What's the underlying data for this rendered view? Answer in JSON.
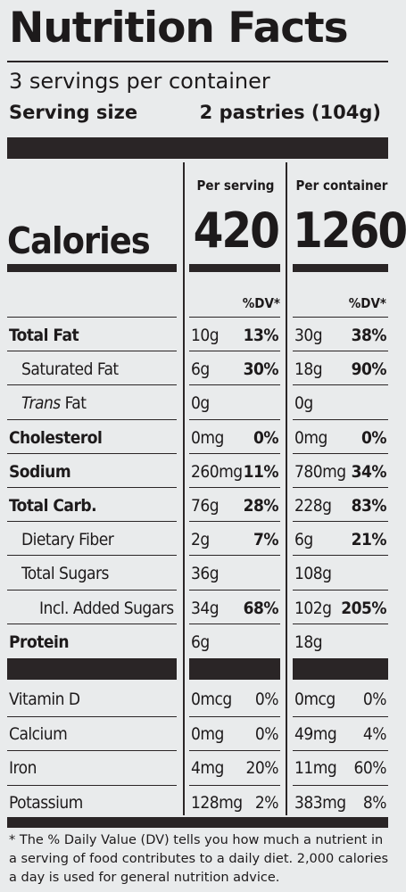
{
  "label": {
    "title": "Nutrition Facts",
    "servings_per_container": "3 servings per container",
    "serving_size_label": "Serving size",
    "serving_size_value": "2 pastries (104g)",
    "col_serving": "Per serving",
    "col_container": "Per container",
    "calories_label": "Calories",
    "calories_serving": "420",
    "calories_container": "1260",
    "dv_header": "%DV*",
    "nutrients": [
      {
        "name": "Total Fat",
        "bold": true,
        "indent": 0,
        "s_amt": "10g",
        "s_dv": "13%",
        "c_amt": "30g",
        "c_dv": "38%"
      },
      {
        "name": "Saturated Fat",
        "bold": false,
        "indent": 1,
        "s_amt": "6g",
        "s_dv": "30%",
        "c_amt": "18g",
        "c_dv": "90%"
      },
      {
        "name_italic": "Trans",
        "name": " Fat",
        "bold": false,
        "indent": 1,
        "s_amt": "0g",
        "s_dv": "",
        "c_amt": "0g",
        "c_dv": ""
      },
      {
        "name": "Cholesterol",
        "bold": true,
        "indent": 0,
        "s_amt": "0mg",
        "s_dv": "0%",
        "c_amt": "0mg",
        "c_dv": "0%"
      },
      {
        "name": "Sodium",
        "bold": true,
        "indent": 0,
        "s_amt": "260mg",
        "s_dv": "11%",
        "c_amt": "780mg",
        "c_dv": "34%"
      },
      {
        "name": "Total Carb.",
        "bold": true,
        "indent": 0,
        "s_amt": "76g",
        "s_dv": "28%",
        "c_amt": "228g",
        "c_dv": "83%"
      },
      {
        "name": "Dietary Fiber",
        "bold": false,
        "indent": 1,
        "s_amt": "2g",
        "s_dv": "7%",
        "c_amt": "6g",
        "c_dv": "21%"
      },
      {
        "name": "Total Sugars",
        "bold": false,
        "indent": 1,
        "s_amt": "36g",
        "s_dv": "",
        "c_amt": "108g",
        "c_dv": ""
      },
      {
        "name": "Incl. Added Sugars",
        "bold": false,
        "indent": 2,
        "s_amt": "34g",
        "s_dv": "68%",
        "c_amt": "102g",
        "c_dv": "205%"
      },
      {
        "name": "Protein",
        "bold": true,
        "indent": 0,
        "s_amt": "6g",
        "s_dv": "",
        "c_amt": "18g",
        "c_dv": ""
      }
    ],
    "vitamins": [
      {
        "name": "Vitamin D",
        "s_amt": "0mcg",
        "s_dv": "0%",
        "c_amt": "0mcg",
        "c_dv": "0%"
      },
      {
        "name": "Calcium",
        "s_amt": "0mg",
        "s_dv": "0%",
        "c_amt": "49mg",
        "c_dv": "4%"
      },
      {
        "name": "Iron",
        "s_amt": "4mg",
        "s_dv": "20%",
        "c_amt": "11mg",
        "c_dv": "60%"
      },
      {
        "name": "Potassium",
        "s_amt": "128mg",
        "s_dv": "2%",
        "c_amt": "383mg",
        "c_dv": "8%"
      }
    ],
    "footnote": "* The % Daily Value (DV) tells you how much a nutrient in a serving of food contributes to a daily diet. 2,000 calories a day is used for general nutrition advice."
  },
  "colors": {
    "ink": "#1d1a1b",
    "bar": "#2a2526",
    "paper": "#e9ebec"
  }
}
